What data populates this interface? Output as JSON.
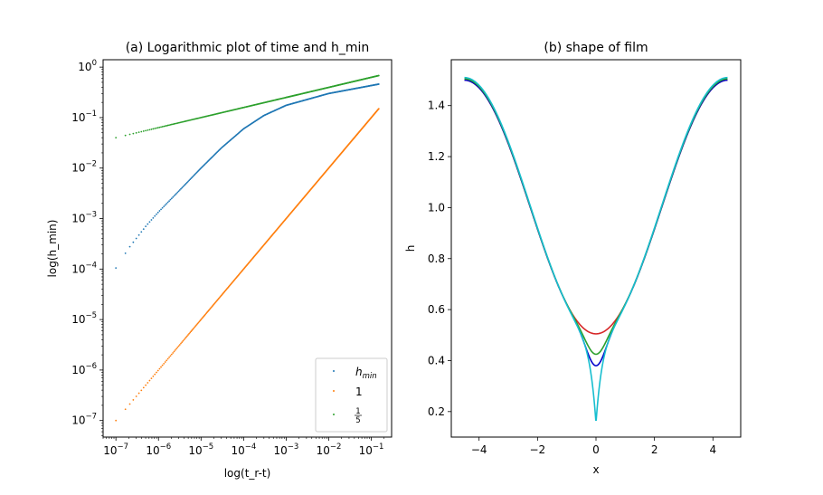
{
  "chart_data": [
    {
      "type": "scatter",
      "title": "(a) Logarithmic plot of time and h_min",
      "xlabel": "log(t_r-t)",
      "ylabel": "log(h_min)",
      "x_scale": "log",
      "y_scale": "log",
      "xlim": [
        5e-08,
        0.3
      ],
      "ylim": [
        4.7e-08,
        1.4
      ],
      "x_ticks": [
        1e-07,
        1e-06,
        1e-05,
        0.0001,
        0.001,
        0.01,
        0.1
      ],
      "x_tick_labels": [
        {
          "base": "10",
          "exp": "−7"
        },
        {
          "base": "10",
          "exp": "−6"
        },
        {
          "base": "10",
          "exp": "−5"
        },
        {
          "base": "10",
          "exp": "−4"
        },
        {
          "base": "10",
          "exp": "−3"
        },
        {
          "base": "10",
          "exp": "−2"
        },
        {
          "base": "10",
          "exp": "−1"
        }
      ],
      "y_ticks": [
        1e-07,
        1e-06,
        1e-05,
        0.0001,
        0.001,
        0.01,
        0.1,
        1
      ],
      "y_tick_labels": [
        {
          "base": "10",
          "exp": "−7"
        },
        {
          "base": "10",
          "exp": "−6"
        },
        {
          "base": "10",
          "exp": "−5"
        },
        {
          "base": "10",
          "exp": "−4"
        },
        {
          "base": "10",
          "exp": "−3"
        },
        {
          "base": "10",
          "exp": "−2"
        },
        {
          "base": "10",
          "exp": "−1"
        },
        {
          "base": "10",
          "exp": "0"
        }
      ],
      "legend_position": "lower-right",
      "grid": false,
      "series": [
        {
          "name": "h_min",
          "legend_base": "h",
          "legend_sub": "min",
          "color": "#1f77b4",
          "points": [
            [
              1e-07,
              0.000105
            ],
            [
              2e-07,
              0.00026
            ],
            [
              5e-07,
              0.0007
            ],
            [
              1e-06,
              0.00135
            ],
            [
              3e-06,
              0.0035
            ],
            [
              1e-05,
              0.01
            ],
            [
              3e-05,
              0.025
            ],
            [
              0.0001,
              0.06
            ],
            [
              0.0003,
              0.11
            ],
            [
              0.001,
              0.175
            ],
            [
              0.01,
              0.3
            ],
            [
              0.15,
              0.46
            ]
          ]
        },
        {
          "name": "1",
          "legend_label": "1",
          "color": "#ff7f0e",
          "points": [
            [
              1e-07,
              1e-07
            ],
            [
              0.15,
              0.15
            ]
          ]
        },
        {
          "name": "1/5",
          "legend_num": "1",
          "legend_den": "5",
          "color": "#2ca02c",
          "points": [
            [
              1e-07,
              0.04
            ],
            [
              0.15,
              0.68
            ]
          ]
        }
      ]
    },
    {
      "type": "line",
      "title": "(b) shape of film",
      "xlabel": "x",
      "ylabel": "h",
      "xlim": [
        -4.95,
        4.95
      ],
      "ylim": [
        0.1,
        1.58
      ],
      "x_ticks": [
        -4,
        -2,
        0,
        2,
        4
      ],
      "x_tick_labels": [
        "−4",
        "−2",
        "0",
        "2",
        "4"
      ],
      "y_ticks": [
        0.2,
        0.4,
        0.6,
        0.8,
        1.0,
        1.2,
        1.4
      ],
      "y_tick_labels": [
        "0.2",
        "0.4",
        "0.6",
        "0.8",
        "1.0",
        "1.2",
        "1.4"
      ],
      "grid": false,
      "series": [
        {
          "color": "#d62728",
          "h_min": 0.505,
          "h_max": 1.5
        },
        {
          "color": "#0000cc",
          "h_min": 0.38,
          "h_max": 1.5
        },
        {
          "color": "#2ca02c",
          "h_min": 0.425,
          "h_max": 1.505
        },
        {
          "color": "#17becf",
          "h_min": 0.155,
          "h_max": 1.51
        }
      ]
    }
  ]
}
